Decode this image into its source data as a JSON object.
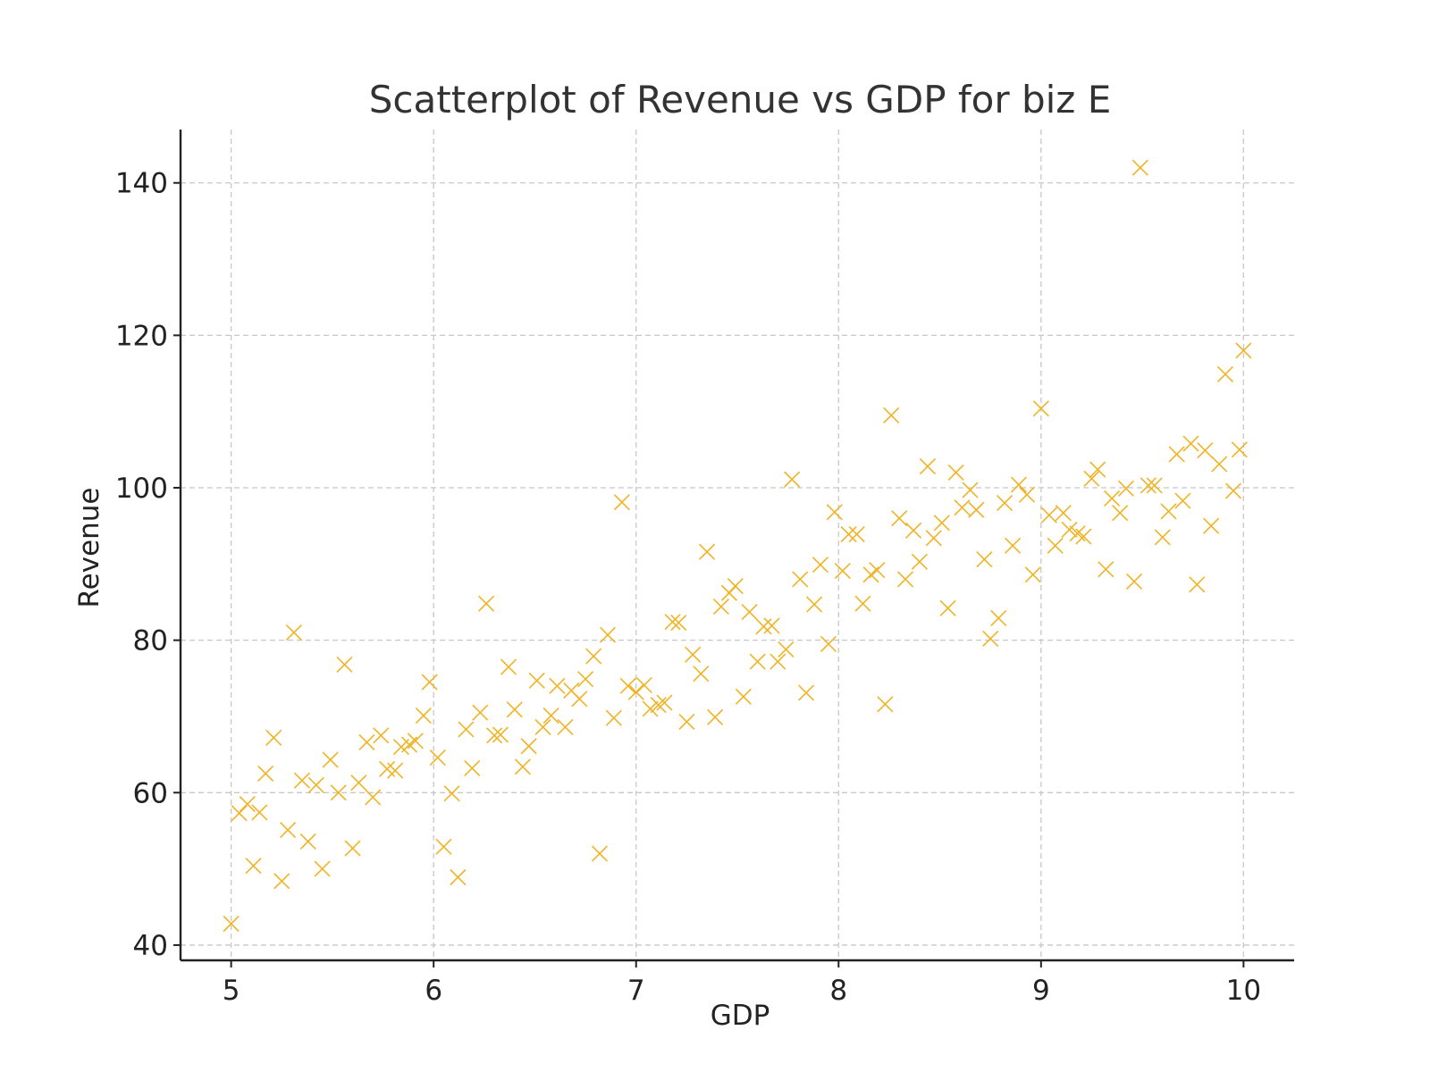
{
  "colors": {
    "marker": "#f0b323"
  },
  "chart_data": {
    "type": "scatter",
    "title": "Scatterplot of Revenue vs GDP for biz E",
    "xlabel": "GDP",
    "ylabel": "Revenue",
    "xlim": [
      4.75,
      10.25
    ],
    "ylim": [
      38,
      147
    ],
    "xticks": [
      5,
      6,
      7,
      8,
      9,
      10
    ],
    "yticks": [
      40,
      60,
      80,
      100,
      120,
      140
    ],
    "grid": true,
    "marker": "x",
    "points": [
      [
        5.0,
        42.8
      ],
      [
        5.04,
        57.3
      ],
      [
        5.08,
        58.5
      ],
      [
        5.11,
        50.4
      ],
      [
        5.14,
        57.4
      ],
      [
        5.17,
        62.5
      ],
      [
        5.21,
        67.2
      ],
      [
        5.25,
        48.4
      ],
      [
        5.28,
        55.1
      ],
      [
        5.31,
        81.0
      ],
      [
        5.35,
        61.6
      ],
      [
        5.38,
        53.6
      ],
      [
        5.42,
        61.0
      ],
      [
        5.45,
        50.0
      ],
      [
        5.49,
        64.3
      ],
      [
        5.53,
        60.0
      ],
      [
        5.56,
        76.8
      ],
      [
        5.6,
        52.7
      ],
      [
        5.63,
        61.3
      ],
      [
        5.67,
        66.6
      ],
      [
        5.7,
        59.4
      ],
      [
        5.74,
        67.5
      ],
      [
        5.77,
        63.1
      ],
      [
        5.81,
        62.9
      ],
      [
        5.84,
        66.0
      ],
      [
        5.88,
        66.3
      ],
      [
        5.91,
        66.8
      ],
      [
        5.95,
        70.1
      ],
      [
        5.98,
        74.5
      ],
      [
        6.02,
        64.6
      ],
      [
        6.05,
        52.9
      ],
      [
        6.09,
        59.9
      ],
      [
        6.12,
        48.9
      ],
      [
        6.16,
        68.3
      ],
      [
        6.19,
        63.2
      ],
      [
        6.23,
        70.5
      ],
      [
        6.26,
        84.8
      ],
      [
        6.3,
        67.5
      ],
      [
        6.33,
        67.6
      ],
      [
        6.37,
        76.5
      ],
      [
        6.4,
        70.9
      ],
      [
        6.44,
        63.4
      ],
      [
        6.47,
        66.1
      ],
      [
        6.51,
        74.7
      ],
      [
        6.54,
        68.6
      ],
      [
        6.58,
        70.1
      ],
      [
        6.61,
        74.0
      ],
      [
        6.65,
        68.6
      ],
      [
        6.68,
        73.4
      ],
      [
        6.72,
        72.3
      ],
      [
        6.75,
        74.9
      ],
      [
        6.79,
        77.9
      ],
      [
        6.82,
        52.0
      ],
      [
        6.86,
        80.7
      ],
      [
        6.89,
        69.8
      ],
      [
        6.93,
        98.1
      ],
      [
        6.96,
        74.0
      ],
      [
        7.0,
        73.2
      ],
      [
        7.04,
        74.1
      ],
      [
        7.07,
        71.0
      ],
      [
        7.11,
        71.5
      ],
      [
        7.14,
        71.8
      ],
      [
        7.18,
        82.4
      ],
      [
        7.21,
        82.3
      ],
      [
        7.25,
        69.3
      ],
      [
        7.28,
        78.1
      ],
      [
        7.32,
        75.6
      ],
      [
        7.35,
        91.6
      ],
      [
        7.39,
        69.9
      ],
      [
        7.42,
        84.4
      ],
      [
        7.46,
        86.2
      ],
      [
        7.49,
        87.1
      ],
      [
        7.53,
        72.6
      ],
      [
        7.56,
        83.7
      ],
      [
        7.6,
        77.2
      ],
      [
        7.63,
        81.8
      ],
      [
        7.67,
        81.9
      ],
      [
        7.7,
        77.2
      ],
      [
        7.74,
        78.8
      ],
      [
        7.77,
        101.1
      ],
      [
        7.81,
        88.0
      ],
      [
        7.84,
        73.1
      ],
      [
        7.88,
        84.7
      ],
      [
        7.91,
        89.9
      ],
      [
        7.95,
        79.5
      ],
      [
        7.98,
        96.8
      ],
      [
        8.02,
        89.1
      ],
      [
        8.05,
        93.9
      ],
      [
        8.09,
        93.9
      ],
      [
        8.12,
        84.8
      ],
      [
        8.16,
        88.6
      ],
      [
        8.19,
        89.2
      ],
      [
        8.23,
        71.6
      ],
      [
        8.26,
        109.5
      ],
      [
        8.3,
        96.0
      ],
      [
        8.33,
        88.0
      ],
      [
        8.37,
        94.4
      ],
      [
        8.4,
        90.3
      ],
      [
        8.44,
        102.8
      ],
      [
        8.47,
        93.4
      ],
      [
        8.51,
        95.4
      ],
      [
        8.54,
        84.2
      ],
      [
        8.58,
        102.0
      ],
      [
        8.61,
        97.4
      ],
      [
        8.65,
        99.7
      ],
      [
        8.68,
        97.1
      ],
      [
        8.72,
        90.6
      ],
      [
        8.75,
        80.2
      ],
      [
        8.79,
        82.9
      ],
      [
        8.82,
        98.0
      ],
      [
        8.86,
        92.4
      ],
      [
        8.89,
        100.4
      ],
      [
        8.93,
        99.1
      ],
      [
        8.96,
        88.6
      ],
      [
        9.0,
        110.4
      ],
      [
        9.04,
        96.4
      ],
      [
        9.07,
        92.4
      ],
      [
        9.11,
        96.7
      ],
      [
        9.14,
        94.5
      ],
      [
        9.18,
        94.0
      ],
      [
        9.21,
        93.6
      ],
      [
        9.25,
        101.2
      ],
      [
        9.28,
        102.4
      ],
      [
        9.32,
        89.3
      ],
      [
        9.35,
        98.6
      ],
      [
        9.39,
        96.7
      ],
      [
        9.42,
        99.9
      ],
      [
        9.46,
        87.7
      ],
      [
        9.49,
        142.0
      ],
      [
        9.53,
        100.3
      ],
      [
        9.56,
        100.3
      ],
      [
        9.6,
        93.5
      ],
      [
        9.63,
        96.9
      ],
      [
        9.67,
        104.4
      ],
      [
        9.7,
        98.3
      ],
      [
        9.74,
        105.8
      ],
      [
        9.77,
        87.3
      ],
      [
        9.81,
        104.9
      ],
      [
        9.84,
        95.0
      ],
      [
        9.88,
        103.1
      ],
      [
        9.91,
        114.9
      ],
      [
        9.95,
        99.6
      ],
      [
        9.98,
        105.0
      ],
      [
        10.0,
        118.0
      ]
    ]
  }
}
